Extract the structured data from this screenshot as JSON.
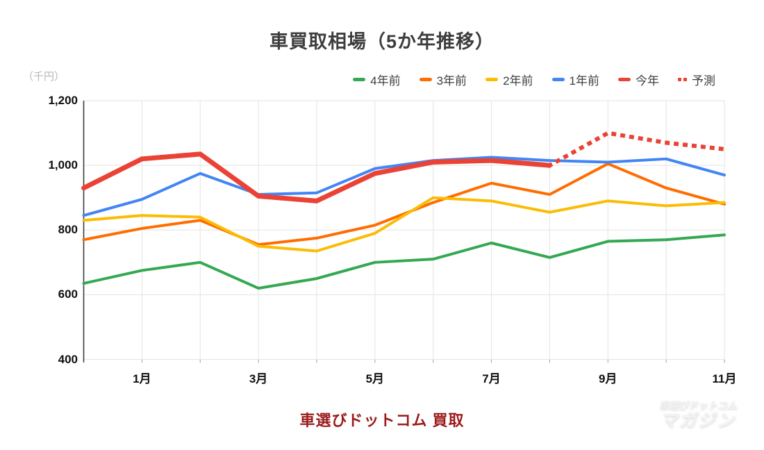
{
  "page": {
    "title": "車買取相場（5か年推移）",
    "unit_label": "（千円）",
    "footer_brand": "車選びドットコム 買取",
    "watermark": {
      "line1": "車選びドットコム",
      "line2": "マガジン"
    }
  },
  "colors": {
    "grid": "#e3e3e3",
    "axis": "#3b3b3b",
    "x_tick": "#9e9e9e",
    "title_text": "#3d3d3d",
    "axis_text": "#0f0f0f",
    "unit_text": "#b6b6b6",
    "legend_text": "#3c4043",
    "brand_red": "#9b1b1b"
  },
  "chart_data": {
    "type": "line",
    "title": "車買取相場（5か年推移）",
    "ylabel": "（千円）",
    "ylim": [
      400,
      1200
    ],
    "grid": true,
    "legend_position": "top-right",
    "y_ticks": [
      {
        "value": 1200,
        "label": "1,200"
      },
      {
        "value": 1000,
        "label": "1,000"
      },
      {
        "value": 800,
        "label": "800"
      },
      {
        "value": 600,
        "label": "600"
      },
      {
        "value": 400,
        "label": "400"
      }
    ],
    "categories": [
      "",
      "1月",
      "",
      "3月",
      "",
      "5月",
      "",
      "7月",
      "",
      "9月",
      "",
      "11月"
    ],
    "series": [
      {
        "key": "four-years-ago",
        "name": "4年前",
        "color": "#34a853",
        "dash": "solid",
        "width": 4,
        "values": [
          635,
          675,
          700,
          620,
          650,
          700,
          710,
          760,
          715,
          765,
          770,
          785
        ]
      },
      {
        "key": "three-years-ago",
        "name": "3年前",
        "color": "#ff6d01",
        "dash": "solid",
        "width": 4,
        "values": [
          770,
          805,
          830,
          755,
          775,
          815,
          885,
          945,
          910,
          1005,
          930,
          880
        ]
      },
      {
        "key": "two-years-ago",
        "name": "2年前",
        "color": "#fbbc04",
        "dash": "solid",
        "width": 4,
        "values": [
          830,
          845,
          840,
          750,
          735,
          790,
          900,
          890,
          855,
          890,
          875,
          885
        ]
      },
      {
        "key": "one-year-ago",
        "name": "1年前",
        "color": "#4285f4",
        "dash": "solid",
        "width": 4,
        "values": [
          845,
          895,
          975,
          910,
          915,
          990,
          1015,
          1025,
          1015,
          1010,
          1020,
          970
        ]
      },
      {
        "key": "this-year",
        "name": "今年",
        "color": "#ea4335",
        "dash": "solid",
        "width": 7,
        "values": [
          930,
          1020,
          1035,
          905,
          890,
          975,
          1010,
          1015,
          1000,
          null,
          null,
          null
        ]
      },
      {
        "key": "forecast",
        "name": "予測",
        "color": "#ea4335",
        "dash": "dotted",
        "width": 6,
        "values": [
          null,
          null,
          null,
          null,
          null,
          null,
          null,
          null,
          1000,
          1100,
          1070,
          1050
        ]
      }
    ]
  }
}
